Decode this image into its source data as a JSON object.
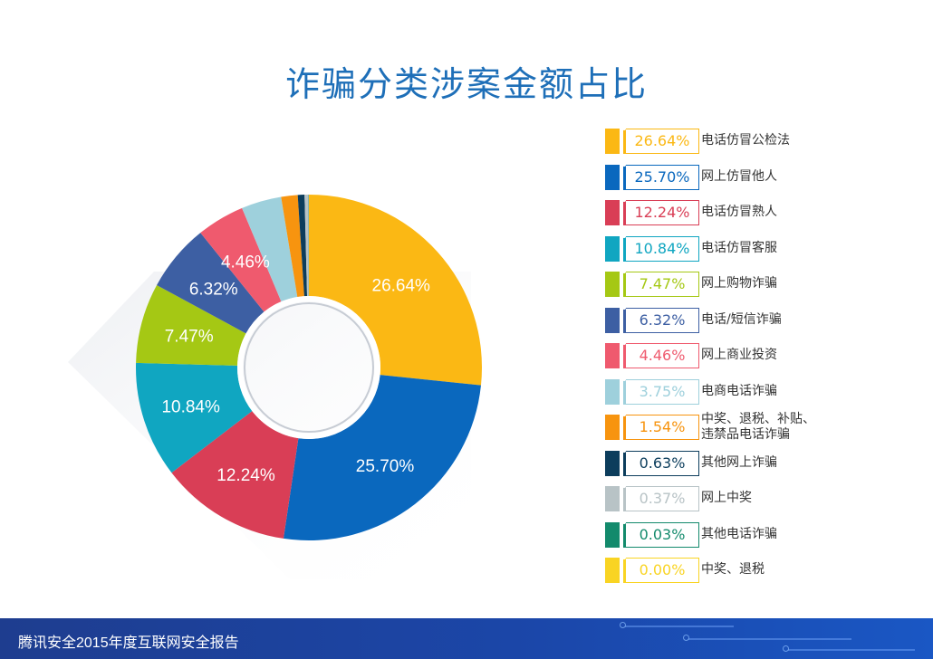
{
  "title": "诈骗分类涉案金额占比",
  "footer": {
    "text": "腾讯安全2015年度互联网安全报告"
  },
  "chart_data": {
    "type": "pie",
    "title": "诈骗分类涉案金额占比",
    "slices": [
      {
        "label": "电话仿冒公检法",
        "value": 26.64,
        "display": "26.64%",
        "color": "#fbb814"
      },
      {
        "label": "网上仿冒他人",
        "value": 25.7,
        "display": "25.70%",
        "color": "#0a68be"
      },
      {
        "label": "电话仿冒熟人",
        "value": 12.24,
        "display": "12.24%",
        "color": "#d93e56"
      },
      {
        "label": "电话仿冒客服",
        "value": 10.84,
        "display": "10.84%",
        "color": "#10a6c1"
      },
      {
        "label": "网上购物诈骗",
        "value": 7.47,
        "display": "7.47%",
        "color": "#a5c814"
      },
      {
        "label": "电话/短信诈骗",
        "value": 6.32,
        "display": "6.32%",
        "color": "#3d5fa3"
      },
      {
        "label": "网上商业投资",
        "value": 4.46,
        "display": "4.46%",
        "color": "#ef5a6e"
      },
      {
        "label": "电商电话诈骗",
        "value": 3.75,
        "display": "3.75%",
        "color": "#9ed0dc"
      },
      {
        "label": "中奖、退税、补贴、\n违禁品电话诈骗",
        "value": 1.54,
        "display": "1.54%",
        "color": "#f7940f"
      },
      {
        "label": "其他网上诈骗",
        "value": 0.63,
        "display": "0.63%",
        "color": "#0c3d5c"
      },
      {
        "label": "网上中奖",
        "value": 0.37,
        "display": "0.37%",
        "color": "#b8c3c6"
      },
      {
        "label": "其他电话诈骗",
        "value": 0.03,
        "display": "0.03%",
        "color": "#138a6c"
      },
      {
        "label": "中奖、退税",
        "value": 0.0,
        "display": "0.00%",
        "color": "#f9d423"
      }
    ]
  }
}
